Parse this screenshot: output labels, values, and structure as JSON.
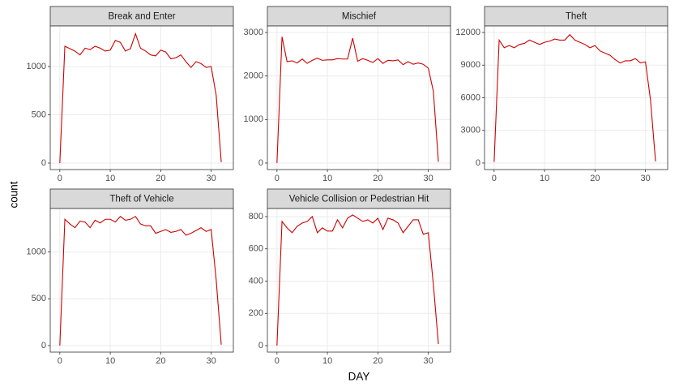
{
  "x_label": "DAY",
  "y_label": "count",
  "chart_data": [
    {
      "type": "line",
      "title": "Break and Enter",
      "color": "#cc0000",
      "grid": true,
      "x": [
        0,
        1,
        2,
        3,
        4,
        5,
        6,
        7,
        8,
        9,
        10,
        11,
        12,
        13,
        14,
        15,
        16,
        17,
        18,
        19,
        20,
        21,
        22,
        23,
        24,
        25,
        26,
        27,
        28,
        29,
        30,
        31,
        32
      ],
      "values": [
        0,
        1210,
        1185,
        1160,
        1120,
        1190,
        1175,
        1210,
        1190,
        1160,
        1170,
        1270,
        1250,
        1160,
        1185,
        1340,
        1190,
        1160,
        1120,
        1110,
        1170,
        1150,
        1080,
        1090,
        1120,
        1050,
        990,
        1050,
        1030,
        990,
        1000,
        700,
        10
      ],
      "xlim": [
        -1.9,
        34.4
      ],
      "xticks": [
        0,
        10,
        20,
        30
      ],
      "ylim": [
        -67,
        1420
      ],
      "yticks": [
        0,
        500,
        1000
      ]
    },
    {
      "type": "line",
      "title": "Mischief",
      "color": "#cc0000",
      "grid": true,
      "x": [
        0,
        1,
        2,
        3,
        4,
        5,
        6,
        7,
        8,
        9,
        10,
        11,
        12,
        13,
        14,
        15,
        16,
        17,
        18,
        19,
        20,
        21,
        22,
        23,
        24,
        25,
        26,
        27,
        28,
        29,
        30,
        31,
        32
      ],
      "values": [
        0,
        2900,
        2330,
        2350,
        2300,
        2390,
        2290,
        2360,
        2410,
        2360,
        2370,
        2370,
        2400,
        2390,
        2390,
        2870,
        2340,
        2400,
        2360,
        2310,
        2400,
        2290,
        2360,
        2350,
        2370,
        2260,
        2330,
        2270,
        2300,
        2270,
        2180,
        1650,
        30
      ],
      "xlim": [
        -1.9,
        34.4
      ],
      "xticks": [
        0,
        10,
        20,
        30
      ],
      "ylim": [
        -150,
        3150
      ],
      "yticks": [
        0,
        1000,
        2000,
        3000
      ]
    },
    {
      "type": "line",
      "title": "Theft",
      "color": "#cc0000",
      "grid": true,
      "x": [
        0,
        1,
        2,
        3,
        4,
        5,
        6,
        7,
        8,
        9,
        10,
        11,
        12,
        13,
        14,
        15,
        16,
        17,
        18,
        19,
        20,
        21,
        22,
        23,
        24,
        25,
        26,
        27,
        28,
        29,
        30,
        31,
        32
      ],
      "values": [
        100,
        11300,
        10600,
        10800,
        10600,
        10900,
        11000,
        11300,
        11100,
        10900,
        11100,
        11200,
        11400,
        11300,
        11300,
        11800,
        11300,
        11100,
        10900,
        10600,
        10800,
        10300,
        10100,
        9900,
        9500,
        9200,
        9400,
        9400,
        9600,
        9200,
        9300,
        5800,
        150
      ],
      "xlim": [
        -1.9,
        34.4
      ],
      "xticks": [
        0,
        10,
        20,
        30
      ],
      "ylim": [
        -600,
        12600
      ],
      "yticks": [
        0,
        3000,
        6000,
        9000,
        12000
      ]
    },
    {
      "type": "line",
      "title": "Theft of Vehicle",
      "color": "#cc0000",
      "grid": true,
      "x": [
        0,
        1,
        2,
        3,
        4,
        5,
        6,
        7,
        8,
        9,
        10,
        11,
        12,
        13,
        14,
        15,
        16,
        17,
        18,
        19,
        20,
        21,
        22,
        23,
        24,
        25,
        26,
        27,
        28,
        29,
        30,
        31,
        32
      ],
      "values": [
        0,
        1350,
        1300,
        1260,
        1330,
        1320,
        1260,
        1340,
        1310,
        1350,
        1350,
        1320,
        1380,
        1340,
        1350,
        1380,
        1300,
        1280,
        1280,
        1200,
        1220,
        1240,
        1210,
        1220,
        1240,
        1180,
        1200,
        1230,
        1260,
        1220,
        1240,
        700,
        10
      ],
      "xlim": [
        -1.9,
        34.4
      ],
      "xticks": [
        0,
        10,
        20,
        30
      ],
      "ylim": [
        -70,
        1465
      ],
      "yticks": [
        0,
        500,
        1000
      ]
    },
    {
      "type": "line",
      "title": "Vehicle Collision or Pedestrian Hit",
      "color": "#cc0000",
      "grid": true,
      "x": [
        0,
        1,
        2,
        3,
        4,
        5,
        6,
        7,
        8,
        9,
        10,
        11,
        12,
        13,
        14,
        15,
        16,
        17,
        18,
        19,
        20,
        21,
        22,
        23,
        24,
        25,
        26,
        27,
        28,
        29,
        30,
        31,
        32
      ],
      "values": [
        0,
        770,
        730,
        700,
        740,
        760,
        770,
        800,
        700,
        730,
        710,
        710,
        780,
        730,
        790,
        810,
        790,
        770,
        780,
        760,
        790,
        720,
        790,
        780,
        760,
        700,
        740,
        780,
        780,
        690,
        700,
        380,
        10
      ],
      "xlim": [
        -1.9,
        34.4
      ],
      "xticks": [
        0,
        10,
        20,
        30
      ],
      "ylim": [
        -40,
        850
      ],
      "yticks": [
        0,
        200,
        400,
        600,
        800
      ]
    }
  ]
}
